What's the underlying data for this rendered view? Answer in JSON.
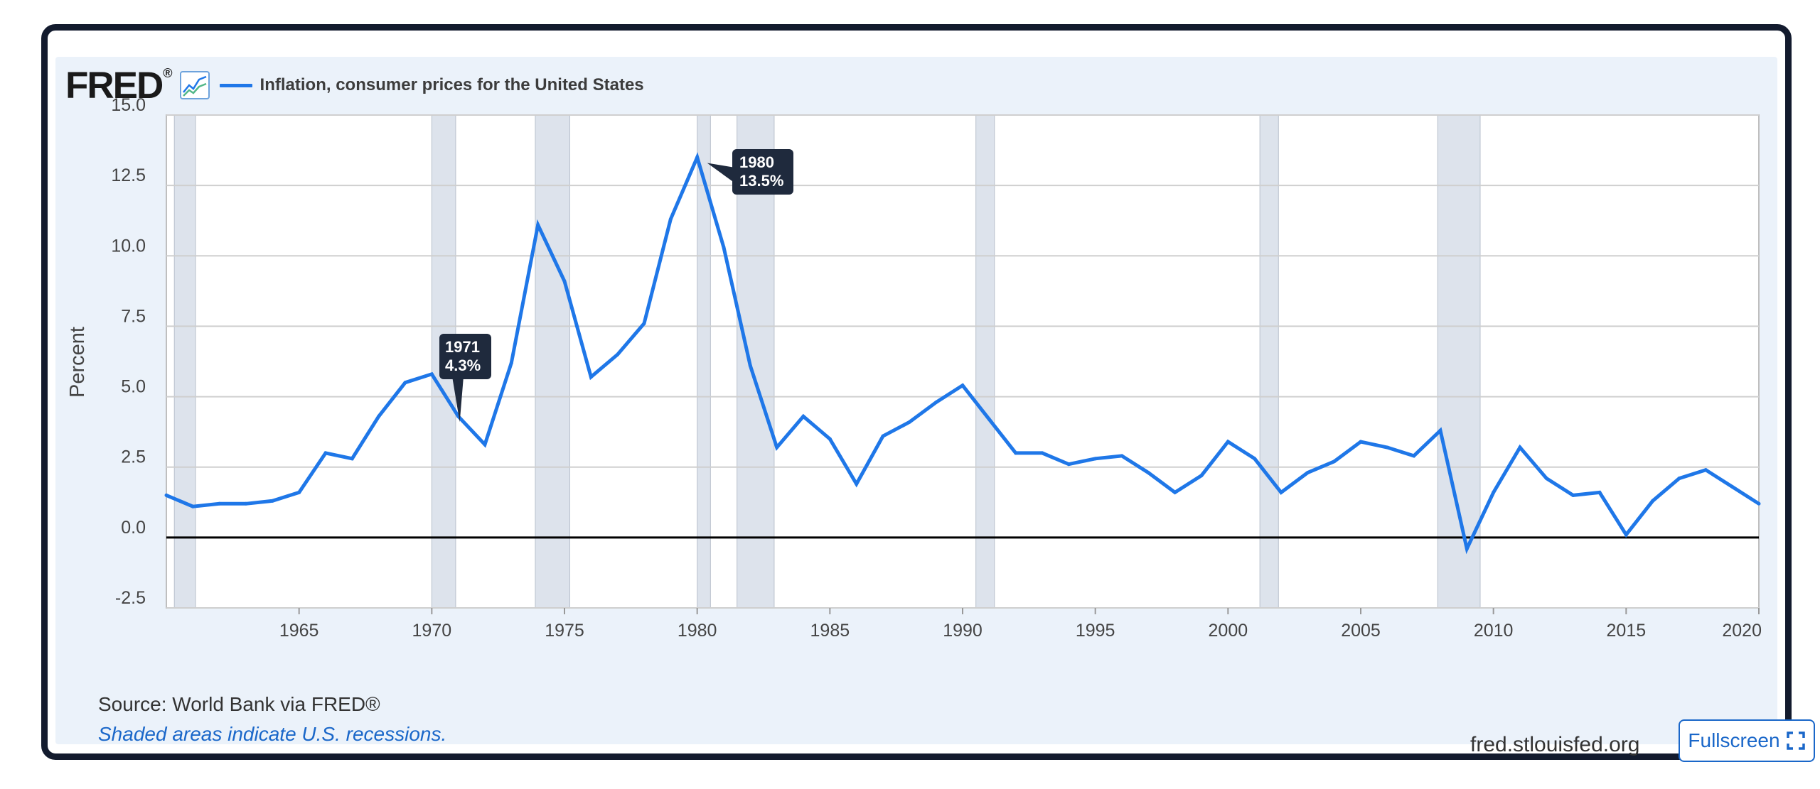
{
  "header": {
    "logo_text": "FRED",
    "logo_mark": "®",
    "graph_icon": "line-chart-icon",
    "series_label": "Inflation, consumer prices for the United States"
  },
  "colors": {
    "series_line": "#1f77e8",
    "recession_shade": "#dde3ec",
    "panel_bg": "#ebf2fa",
    "tooltip_bg": "#1f2a3d",
    "zero_line": "#000000",
    "grid": "#cfcfcf"
  },
  "footer": {
    "source": "Source: World Bank via FRED®",
    "note": "Shaded areas indicate U.S. recessions.",
    "url": "fred.stlouisfed.org",
    "fullscreen_label": "Fullscreen",
    "fullscreen_icon": "expand-icon"
  },
  "chart_data": {
    "type": "line",
    "ylabel": "Percent",
    "ylim": [
      -2.5,
      15.0
    ],
    "xlim": [
      1960,
      2020
    ],
    "grid": true,
    "y_ticks": [
      -2.5,
      0.0,
      2.5,
      5.0,
      7.5,
      10.0,
      12.5,
      15.0
    ],
    "y_tick_labels": [
      "-2.5",
      "0.0",
      "2.5",
      "5.0",
      "7.5",
      "10.0",
      "12.5",
      "15.0"
    ],
    "x_ticks": [
      1965,
      1970,
      1975,
      1980,
      1985,
      1990,
      1995,
      2000,
      2005,
      2010,
      2015,
      2020
    ],
    "x_tick_labels": [
      "1965",
      "1970",
      "1975",
      "1980",
      "1985",
      "1990",
      "1995",
      "2000",
      "2005",
      "2010",
      "2015",
      "2020"
    ],
    "recessions": [
      [
        1960.3,
        1961.1
      ],
      [
        1970.0,
        1970.9
      ],
      [
        1973.9,
        1975.2
      ],
      [
        1980.0,
        1980.5
      ],
      [
        1981.5,
        1982.9
      ],
      [
        1990.5,
        1991.2
      ],
      [
        2001.2,
        2001.9
      ],
      [
        2007.9,
        2009.5
      ]
    ],
    "series": [
      {
        "name": "Inflation, consumer prices for the United States",
        "x": [
          1960,
          1961,
          1962,
          1963,
          1964,
          1965,
          1966,
          1967,
          1968,
          1969,
          1970,
          1971,
          1972,
          1973,
          1974,
          1975,
          1976,
          1977,
          1978,
          1979,
          1980,
          1981,
          1982,
          1983,
          1984,
          1985,
          1986,
          1987,
          1988,
          1989,
          1990,
          1991,
          1992,
          1993,
          1994,
          1995,
          1996,
          1997,
          1998,
          1999,
          2000,
          2001,
          2002,
          2003,
          2004,
          2005,
          2006,
          2007,
          2008,
          2009,
          2010,
          2011,
          2012,
          2013,
          2014,
          2015,
          2016,
          2017,
          2018,
          2019,
          2020
        ],
        "values": [
          1.5,
          1.1,
          1.2,
          1.2,
          1.3,
          1.6,
          3.0,
          2.8,
          4.3,
          5.5,
          5.8,
          4.3,
          3.3,
          6.2,
          11.1,
          9.1,
          5.7,
          6.5,
          7.6,
          11.3,
          13.5,
          10.3,
          6.1,
          3.2,
          4.3,
          3.5,
          1.9,
          3.6,
          4.1,
          4.8,
          5.4,
          4.2,
          3.0,
          3.0,
          2.6,
          2.8,
          2.9,
          2.3,
          1.6,
          2.2,
          3.4,
          2.8,
          1.6,
          2.3,
          2.7,
          3.4,
          3.2,
          2.9,
          3.8,
          -0.4,
          1.6,
          3.2,
          2.1,
          1.5,
          1.6,
          0.1,
          1.3,
          2.1,
          2.4,
          1.8,
          1.2
        ]
      }
    ],
    "annotations": [
      {
        "year_label": "1971",
        "value_label": "4.3%",
        "x": 1971,
        "y": 4.3
      },
      {
        "year_label": "1980",
        "value_label": "13.5%",
        "x": 1980,
        "y": 13.5
      }
    ]
  }
}
